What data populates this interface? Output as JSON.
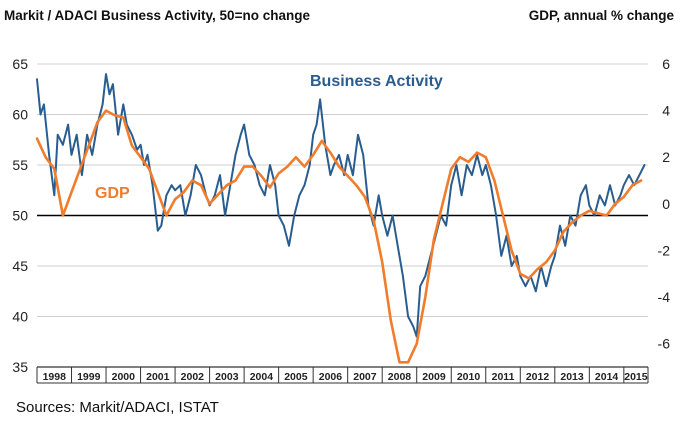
{
  "header": {
    "left_title": "Markit / ADACI  Business Activity, 50=no change",
    "right_title": "GDP, annual % change"
  },
  "footer": {
    "source": "Sources: Markit/ADACI, ISTAT"
  },
  "colors": {
    "business": "#2a5d8f",
    "gdp": "#f07c2c",
    "grid": "#cfcfcf",
    "axis": "#333333",
    "baseline": "#000000"
  },
  "chart_data": {
    "type": "line",
    "title": "Markit / ADACI  Business Activity, 50=no change",
    "xlabel": "",
    "ylabel": "Markit / ADACI  Business Activity, 50=no change",
    "y2label": "GDP, annual % change",
    "ylim": [
      35,
      65
    ],
    "y2lim": [
      -7,
      6
    ],
    "xlim": [
      1998.0,
      2015.7
    ],
    "yticks": [
      "35",
      "40",
      "45",
      "50",
      "55",
      "60",
      "65"
    ],
    "y2ticks": [
      "-6",
      "-4",
      "-2",
      "0",
      "2",
      "4",
      "6"
    ],
    "x_tick_labels": [
      "1998",
      "1999",
      "2000",
      "2001",
      "2002",
      "2003",
      "2004",
      "2005",
      "2006",
      "2007",
      "2008",
      "2009",
      "2010",
      "2011",
      "2012",
      "2013",
      "2014",
      "2015"
    ],
    "reference_line": 50,
    "series": [
      {
        "name": "Business Activity",
        "axis": "left",
        "x": [
          1998.0,
          1998.1,
          1998.2,
          1998.35,
          1998.5,
          1998.6,
          1998.75,
          1998.9,
          1999.0,
          1999.15,
          1999.3,
          1999.45,
          1999.6,
          1999.75,
          1999.9,
          2000.0,
          2000.1,
          2000.2,
          2000.35,
          2000.5,
          2000.6,
          2000.75,
          2000.9,
          2001.0,
          2001.1,
          2001.2,
          2001.35,
          2001.5,
          2001.6,
          2001.75,
          2001.9,
          2002.0,
          2002.15,
          2002.3,
          2002.45,
          2002.6,
          2002.75,
          2002.9,
          2003.0,
          2003.15,
          2003.3,
          2003.45,
          2003.6,
          2003.75,
          2003.9,
          2004.0,
          2004.15,
          2004.3,
          2004.45,
          2004.6,
          2004.75,
          2004.9,
          2005.0,
          2005.15,
          2005.3,
          2005.45,
          2005.6,
          2005.75,
          2005.9,
          2006.0,
          2006.1,
          2006.2,
          2006.35,
          2006.5,
          2006.6,
          2006.75,
          2006.9,
          2007.0,
          2007.15,
          2007.3,
          2007.45,
          2007.6,
          2007.75,
          2007.9,
          2008.0,
          2008.15,
          2008.3,
          2008.45,
          2008.6,
          2008.75,
          2008.9,
          2009.0,
          2009.1,
          2009.25,
          2009.4,
          2009.55,
          2009.7,
          2009.85,
          2010.0,
          2010.15,
          2010.3,
          2010.45,
          2010.6,
          2010.75,
          2010.9,
          2011.0,
          2011.15,
          2011.3,
          2011.45,
          2011.6,
          2011.75,
          2011.9,
          2012.0,
          2012.15,
          2012.3,
          2012.45,
          2012.6,
          2012.75,
          2012.9,
          2013.0,
          2013.15,
          2013.3,
          2013.45,
          2013.6,
          2013.75,
          2013.9,
          2014.0,
          2014.15,
          2014.3,
          2014.45,
          2014.6,
          2014.75,
          2014.9,
          2015.0,
          2015.15,
          2015.3,
          2015.45,
          2015.6
        ],
        "values": [
          63.5,
          60.0,
          61.0,
          56.0,
          52.0,
          58.0,
          57.0,
          59.0,
          56.0,
          58.0,
          54.0,
          58.0,
          56.0,
          59.0,
          61.0,
          64.0,
          62.0,
          63.0,
          58.0,
          61.0,
          59.0,
          58.0,
          56.5,
          57.0,
          55.0,
          56.0,
          53.0,
          48.5,
          49.0,
          52.0,
          53.0,
          52.5,
          53.0,
          50.0,
          52.0,
          55.0,
          54.0,
          52.0,
          51.0,
          52.0,
          54.0,
          50.0,
          53.0,
          56.0,
          58.0,
          59.0,
          56.0,
          55.0,
          53.0,
          52.0,
          55.0,
          53.0,
          50.0,
          49.0,
          47.0,
          50.0,
          52.0,
          53.0,
          55.0,
          58.0,
          59.0,
          61.5,
          57.0,
          54.0,
          55.0,
          56.0,
          54.0,
          56.0,
          54.0,
          58.0,
          56.0,
          51.0,
          49.0,
          52.0,
          50.0,
          48.0,
          50.0,
          47.0,
          44.0,
          40.0,
          39.0,
          38.0,
          43.0,
          44.0,
          46.0,
          48.0,
          50.0,
          49.0,
          53.0,
          55.0,
          52.0,
          55.0,
          54.0,
          56.0,
          54.0,
          55.0,
          53.0,
          50.0,
          46.0,
          48.0,
          45.0,
          46.0,
          44.0,
          43.0,
          44.0,
          42.5,
          45.0,
          43.0,
          45.0,
          46.0,
          49.0,
          47.0,
          50.0,
          49.0,
          52.0,
          53.0,
          51.0,
          50.0,
          52.0,
          51.0,
          53.0,
          51.0,
          52.0,
          53.0,
          54.0,
          53.0,
          54.0,
          55.0
        ]
      },
      {
        "name": "GDP",
        "axis": "right",
        "x": [
          1998.0,
          1998.25,
          1998.5,
          1998.75,
          1999.0,
          1999.25,
          1999.5,
          1999.75,
          2000.0,
          2000.25,
          2000.5,
          2000.75,
          2001.0,
          2001.25,
          2001.5,
          2001.75,
          2002.0,
          2002.25,
          2002.5,
          2002.75,
          2003.0,
          2003.25,
          2003.5,
          2003.75,
          2004.0,
          2004.25,
          2004.5,
          2004.75,
          2005.0,
          2005.25,
          2005.5,
          2005.75,
          2006.0,
          2006.25,
          2006.5,
          2006.75,
          2007.0,
          2007.25,
          2007.5,
          2007.75,
          2008.0,
          2008.25,
          2008.5,
          2008.75,
          2009.0,
          2009.25,
          2009.5,
          2009.75,
          2010.0,
          2010.25,
          2010.5,
          2010.75,
          2011.0,
          2011.25,
          2011.5,
          2011.75,
          2012.0,
          2012.25,
          2012.5,
          2012.75,
          2013.0,
          2013.25,
          2013.5,
          2013.75,
          2014.0,
          2014.25,
          2014.5,
          2014.75,
          2015.0,
          2015.25,
          2015.5
        ],
        "values": [
          2.8,
          2.0,
          1.5,
          -0.5,
          0.5,
          1.5,
          2.5,
          3.5,
          4.0,
          3.8,
          3.7,
          2.5,
          2.0,
          1.5,
          0.5,
          -0.5,
          0.2,
          0.5,
          1.0,
          0.8,
          0.0,
          0.4,
          0.8,
          1.0,
          1.6,
          1.6,
          1.2,
          0.7,
          1.3,
          1.6,
          2.0,
          1.6,
          2.1,
          2.7,
          2.2,
          1.6,
          1.2,
          0.8,
          0.3,
          -0.7,
          -2.5,
          -5.0,
          -6.8,
          -6.8,
          -6.0,
          -4.0,
          -1.5,
          0.0,
          1.5,
          2.0,
          1.8,
          2.2,
          2.0,
          1.0,
          -0.5,
          -2.0,
          -3.0,
          -3.2,
          -2.8,
          -2.5,
          -2.0,
          -1.2,
          -0.8,
          -0.5,
          -0.3,
          -0.4,
          -0.5,
          0.0,
          0.3,
          0.8,
          1.0
        ]
      }
    ]
  }
}
